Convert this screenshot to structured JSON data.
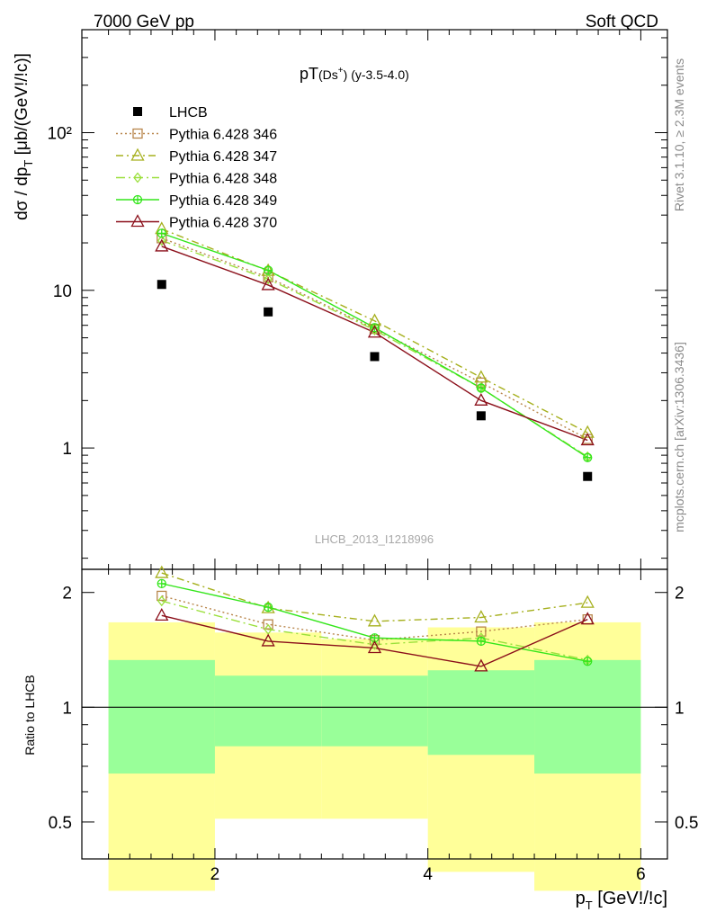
{
  "header": {
    "left": "7000 GeV pp",
    "right": "Soft QCD"
  },
  "side_labels": {
    "rivet": "Rivet 3.1.10, ≥ 2.3M events",
    "mcplots": "mcplots.cern.ch [arXiv:1306.3436]"
  },
  "watermark": "LHCB_2013_I1218996",
  "colors": {
    "data": "#000000",
    "p346": "#b8864b",
    "p347": "#a6b01e",
    "p348": "#9be03c",
    "p349": "#33e61a",
    "p370": "#8b0f1a",
    "band_outer": "#ffff99",
    "band_inner": "#99ff99"
  },
  "chart_data": [
    {
      "type": "scatter",
      "title_main": "pT",
      "title_sub": "(Ds",
      "title_sup": "+",
      "title_tail": ") (y-3.5-4.0)",
      "ylabel": "dσ / dp_T [μb/(GeV!/!c)]",
      "yscale": "log",
      "ylim": [
        0.17,
        450
      ],
      "xlim": [
        0.75,
        6.25
      ],
      "yticklabels": [
        "1",
        "10",
        "10²"
      ],
      "legend_position": "top-left",
      "x": [
        1.5,
        2.5,
        3.5,
        4.5,
        5.5
      ],
      "series": [
        {
          "name": "LHCB",
          "key": "data",
          "marker": "square-filled",
          "values": [
            10.9,
            7.3,
            3.8,
            1.6,
            0.66
          ]
        },
        {
          "name": "Pythia 6.428 346",
          "key": "p346",
          "marker": "square-open",
          "dash": "2,3",
          "values": [
            21.4,
            12.1,
            5.7,
            2.6,
            1.14
          ]
        },
        {
          "name": "Pythia 6.428 347",
          "key": "p347",
          "marker": "triangle-open",
          "dash": "8,4,2,4",
          "values": [
            24.5,
            13.3,
            6.4,
            2.8,
            1.25
          ]
        },
        {
          "name": "Pythia 6.428 348",
          "key": "p348",
          "marker": "diamond-open",
          "dash": "10,4,2,4",
          "values": [
            20.7,
            11.8,
            5.6,
            2.4,
            0.88
          ]
        },
        {
          "name": "Pythia 6.428 349",
          "key": "p349",
          "marker": "cross-circle",
          "dash": "",
          "values": [
            23.0,
            13.4,
            5.8,
            2.4,
            0.87
          ]
        },
        {
          "name": "Pythia 6.428 370",
          "key": "p370",
          "marker": "triangle-open",
          "dash": "",
          "values": [
            19.0,
            10.8,
            5.4,
            2.0,
            1.12
          ]
        }
      ]
    },
    {
      "type": "scatter",
      "ylabel": "Ratio to LHCB",
      "xlabel": "p_T [GeV!/!c]",
      "xlim": [
        0.75,
        6.25
      ],
      "xticklabels": [
        "2",
        "4",
        "6"
      ],
      "ylim": [
        0.4,
        2.3
      ],
      "yticklabels": [
        "0.5",
        "1",
        "2"
      ],
      "x": [
        1.5,
        2.5,
        3.5,
        4.5,
        5.5
      ],
      "bands": {
        "edges": [
          1,
          2,
          3,
          4,
          5,
          6
        ],
        "outer_low": [
          0.33,
          0.51,
          0.51,
          0.37,
          0.33
        ],
        "outer_high": [
          1.67,
          1.57,
          1.51,
          1.62,
          1.67
        ],
        "inner_low": [
          0.67,
          0.79,
          0.79,
          0.75,
          0.67
        ],
        "inner_high": [
          1.33,
          1.21,
          1.21,
          1.25,
          1.33
        ]
      },
      "series": [
        {
          "key": "p346",
          "marker": "square-open",
          "dash": "2,3",
          "values": [
            1.96,
            1.65,
            1.5,
            1.58,
            1.7
          ]
        },
        {
          "key": "p347",
          "marker": "triangle-open",
          "dash": "8,4,2,4",
          "values": [
            2.25,
            1.82,
            1.68,
            1.72,
            1.88
          ]
        },
        {
          "key": "p348",
          "marker": "diamond-open",
          "dash": "10,4,2,4",
          "values": [
            1.9,
            1.6,
            1.46,
            1.52,
            1.33
          ]
        },
        {
          "key": "p349",
          "marker": "cross-circle",
          "dash": "",
          "values": [
            2.11,
            1.83,
            1.52,
            1.49,
            1.32
          ]
        },
        {
          "key": "p370",
          "marker": "triangle-open",
          "dash": "",
          "values": [
            1.74,
            1.49,
            1.43,
            1.28,
            1.7
          ]
        }
      ]
    }
  ]
}
